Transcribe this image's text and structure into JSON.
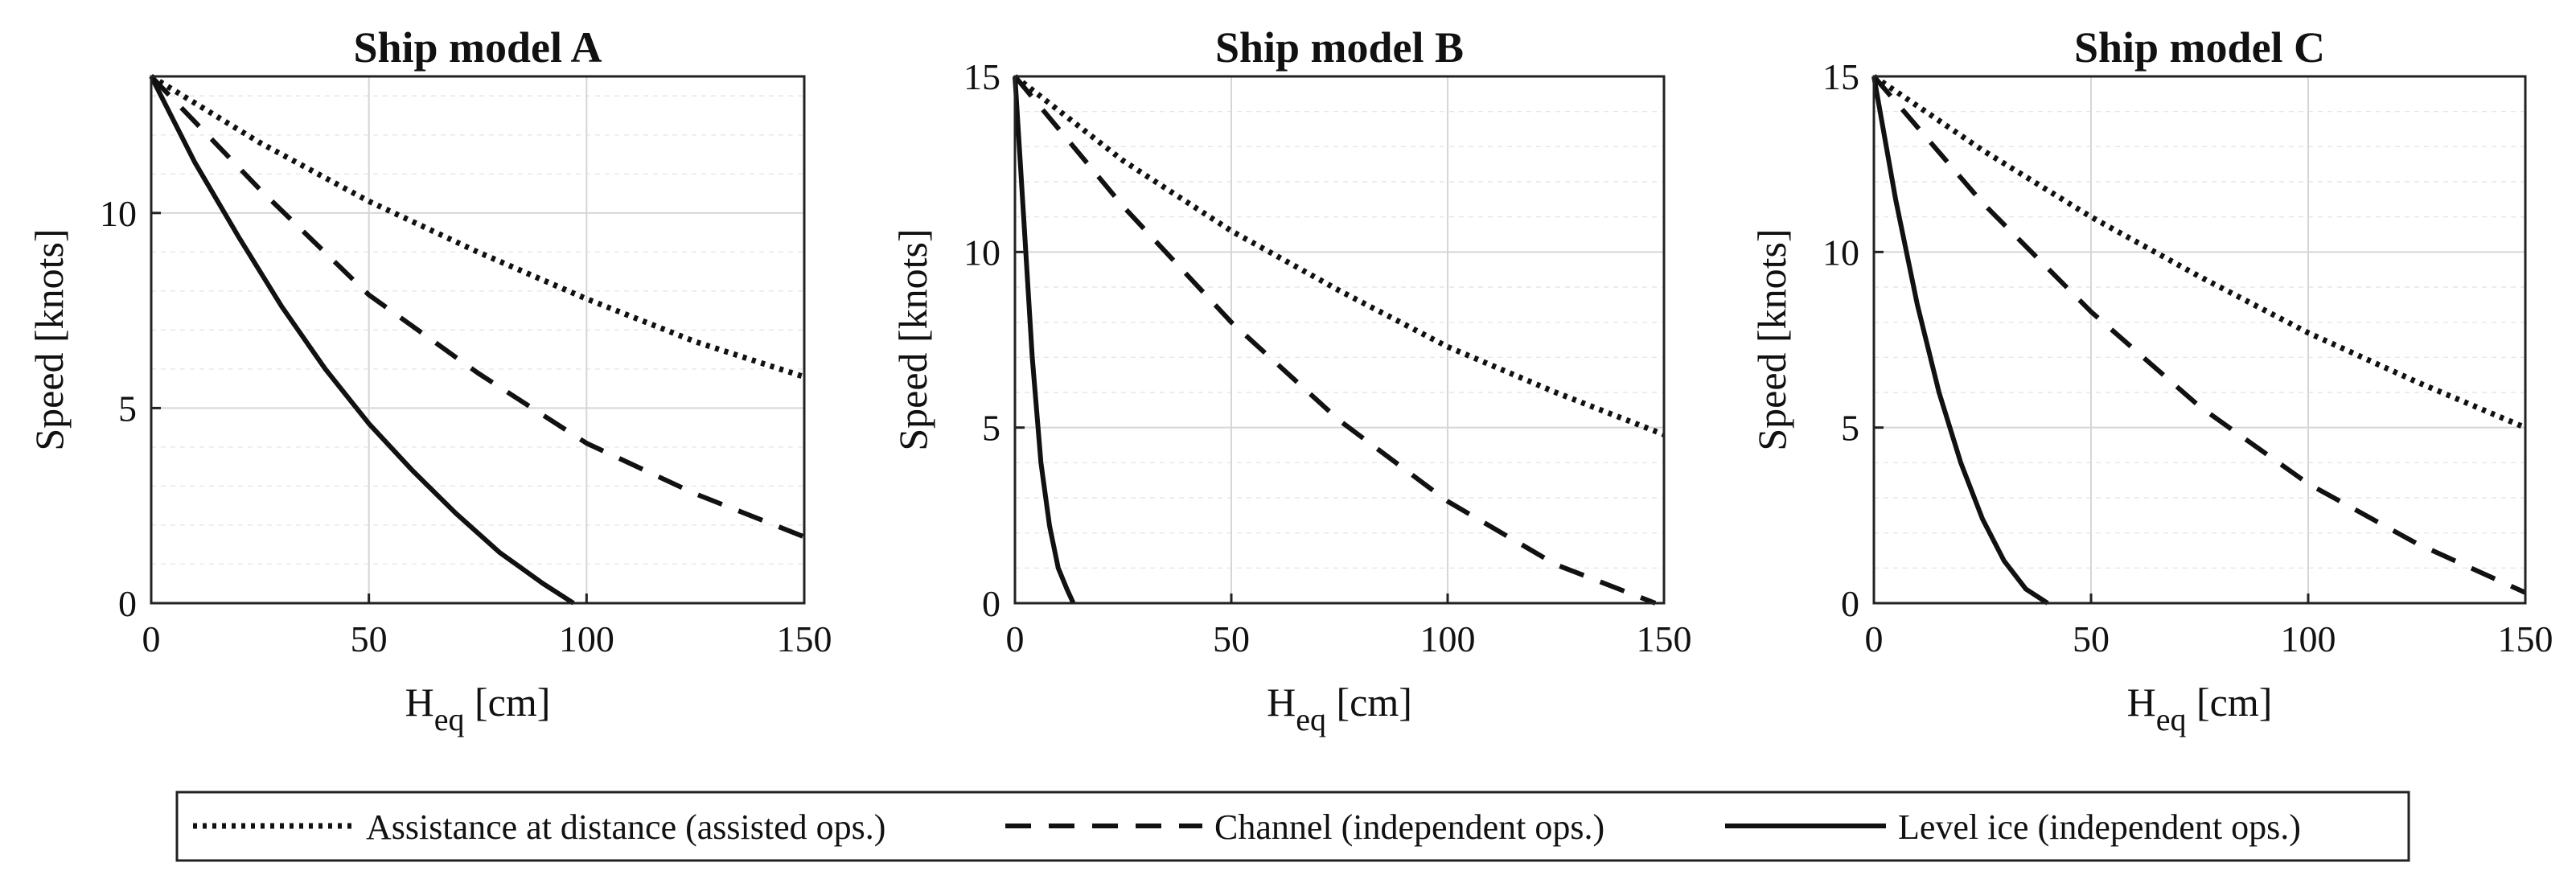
{
  "chart_data": [
    {
      "type": "line",
      "title": "Ship model A",
      "xlabel": "H",
      "xlabel_sub": "eq",
      "xlabel_unit": "[cm]",
      "ylabel": "Speed [knots]",
      "xlim": [
        0,
        150
      ],
      "ylim": [
        0,
        13.5
      ],
      "xticks": [
        0,
        50,
        100,
        150
      ],
      "yticks": [
        0,
        5,
        10
      ],
      "xtick_labels": [
        "0",
        "50",
        "100",
        "150"
      ],
      "ytick_labels": [
        "0",
        "5",
        "10"
      ],
      "grid": true,
      "series": [
        {
          "name": "Assistance at distance (assisted ops.)",
          "style": "dotted",
          "x": [
            0,
            25,
            50,
            75,
            100,
            125,
            150
          ],
          "y": [
            13.5,
            11.8,
            10.3,
            9.0,
            7.8,
            6.7,
            5.8
          ]
        },
        {
          "name": "Channel (independent ops.)",
          "style": "dashed",
          "x": [
            0,
            25,
            50,
            75,
            100,
            125,
            150
          ],
          "y": [
            13.5,
            10.6,
            7.9,
            5.9,
            4.1,
            2.8,
            1.7
          ]
        },
        {
          "name": "Level ice (independent ops.)",
          "style": "solid",
          "x": [
            0,
            10,
            20,
            30,
            40,
            50,
            60,
            70,
            80,
            90,
            97
          ],
          "y": [
            13.5,
            11.3,
            9.4,
            7.6,
            6.0,
            4.6,
            3.4,
            2.3,
            1.3,
            0.5,
            0
          ]
        }
      ]
    },
    {
      "type": "line",
      "title": "Ship model B",
      "xlabel": "H",
      "xlabel_sub": "eq",
      "xlabel_unit": "[cm]",
      "ylabel": "Speed [knots]",
      "xlim": [
        0,
        150
      ],
      "ylim": [
        0,
        15
      ],
      "xticks": [
        0,
        50,
        100,
        150
      ],
      "yticks": [
        0,
        5,
        10,
        15
      ],
      "xtick_labels": [
        "0",
        "50",
        "100",
        "150"
      ],
      "ytick_labels": [
        "0",
        "5",
        "10",
        "15"
      ],
      "grid": true,
      "series": [
        {
          "name": "Assistance at distance (assisted ops.)",
          "style": "dotted",
          "x": [
            0,
            25,
            50,
            75,
            100,
            125,
            150
          ],
          "y": [
            15,
            12.6,
            10.6,
            8.9,
            7.3,
            6.0,
            4.8
          ]
        },
        {
          "name": "Channel (independent ops.)",
          "style": "dashed",
          "x": [
            0,
            25,
            50,
            75,
            100,
            125,
            148
          ],
          "y": [
            15,
            11.3,
            8.0,
            5.2,
            2.9,
            1.1,
            0
          ]
        },
        {
          "name": "Level ice (independent ops.)",
          "style": "solid",
          "x": [
            0,
            2,
            4,
            6,
            8,
            10,
            12,
            13.5
          ],
          "y": [
            15,
            11.0,
            7.0,
            4.0,
            2.2,
            1.0,
            0.4,
            0
          ]
        }
      ]
    },
    {
      "type": "line",
      "title": "Ship model C",
      "xlabel": "H",
      "xlabel_sub": "eq",
      "xlabel_unit": "[cm]",
      "ylabel": "Speed [knots]",
      "xlim": [
        0,
        150
      ],
      "ylim": [
        0,
        15
      ],
      "xticks": [
        0,
        50,
        100,
        150
      ],
      "yticks": [
        0,
        5,
        10,
        15
      ],
      "xtick_labels": [
        "0",
        "50",
        "100",
        "150"
      ],
      "ytick_labels": [
        "0",
        "5",
        "10",
        "15"
      ],
      "grid": true,
      "series": [
        {
          "name": "Assistance at distance (assisted ops.)",
          "style": "dotted",
          "x": [
            0,
            25,
            50,
            75,
            100,
            125,
            150
          ],
          "y": [
            15,
            12.9,
            11.0,
            9.3,
            7.7,
            6.3,
            5.0
          ]
        },
        {
          "name": "Channel (independent ops.)",
          "style": "dashed",
          "x": [
            0,
            25,
            50,
            75,
            100,
            125,
            150
          ],
          "y": [
            15,
            11.4,
            8.3,
            5.6,
            3.4,
            1.7,
            0.3
          ]
        },
        {
          "name": "Level ice (independent ops.)",
          "style": "solid",
          "x": [
            0,
            5,
            10,
            15,
            20,
            25,
            30,
            35,
            40
          ],
          "y": [
            15,
            11.5,
            8.5,
            6.0,
            4.0,
            2.4,
            1.2,
            0.4,
            0
          ]
        }
      ]
    }
  ],
  "legend": {
    "position": "bottom",
    "items": [
      {
        "label": "Assistance at distance (assisted ops.)",
        "style": "dotted"
      },
      {
        "label": "Channel (independent ops.)",
        "style": "dashed"
      },
      {
        "label": "Level ice (independent ops.)",
        "style": "solid"
      }
    ]
  }
}
